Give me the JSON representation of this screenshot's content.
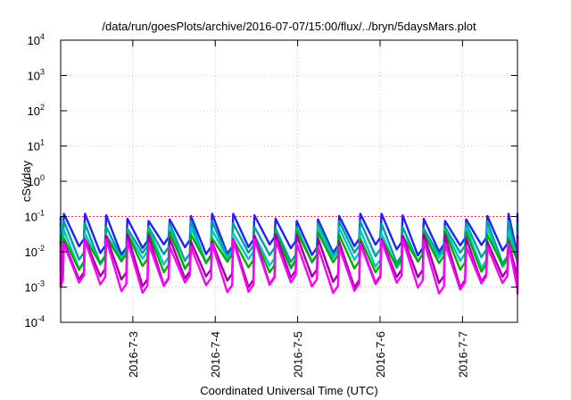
{
  "chart_data": {
    "type": "line",
    "title": "/data/run/goesPlots/archive/2016-07-07/15:00/flux/../bryn/5daysMars.plot",
    "xlabel": "Coordinated Universal Time (UTC)",
    "ylabel": "cSv/day",
    "yscale": "log",
    "ylim": [
      0.0001,
      10000
    ],
    "xlim": [
      "2016-07-02 03:00",
      "2016-07-07 16:00"
    ],
    "grid": true,
    "y_ticks": [
      {
        "base": "10",
        "exp": "4",
        "value": 10000
      },
      {
        "base": "10",
        "exp": "3",
        "value": 1000
      },
      {
        "base": "10",
        "exp": "2",
        "value": 100
      },
      {
        "base": "10",
        "exp": "1",
        "value": 10
      },
      {
        "base": "10",
        "exp": "0",
        "value": 1
      },
      {
        "base": "10",
        "exp": "-1",
        "value": 0.1
      },
      {
        "base": "10",
        "exp": "-2",
        "value": 0.01
      },
      {
        "base": "10",
        "exp": "-3",
        "value": 0.001
      },
      {
        "base": "10",
        "exp": "-4",
        "value": 0.0001
      }
    ],
    "x_ticks": [
      {
        "label": "2016-7-3",
        "t": "2016-07-03 00:00"
      },
      {
        "label": "2016-7-4",
        "t": "2016-07-04 00:00"
      },
      {
        "label": "2016-7-5",
        "t": "2016-07-05 00:00"
      },
      {
        "label": "2016-7-6",
        "t": "2016-07-06 00:00"
      },
      {
        "label": "2016-7-7",
        "t": "2016-07-07 00:00"
      }
    ],
    "sol_period_hours": 24.66,
    "peak_envelope_max": 0.12,
    "series": [
      {
        "color": "#ff0000",
        "constant": 0.1
      },
      {
        "color": "#2020ff",
        "peak": 0.1,
        "min": 0.012
      },
      {
        "color": "#00a0a0",
        "peak": 0.06,
        "min": 0.007
      },
      {
        "color": "#00c8c8",
        "peak": 0.04,
        "min": 0.005
      },
      {
        "color": "#00b000",
        "peak": 0.03,
        "min": 0.004
      },
      {
        "color": "#a000a0",
        "peak": 0.025,
        "min": 0.0015
      },
      {
        "color": "#ff00ff",
        "peak": 0.018,
        "min": 0.001
      }
    ]
  }
}
